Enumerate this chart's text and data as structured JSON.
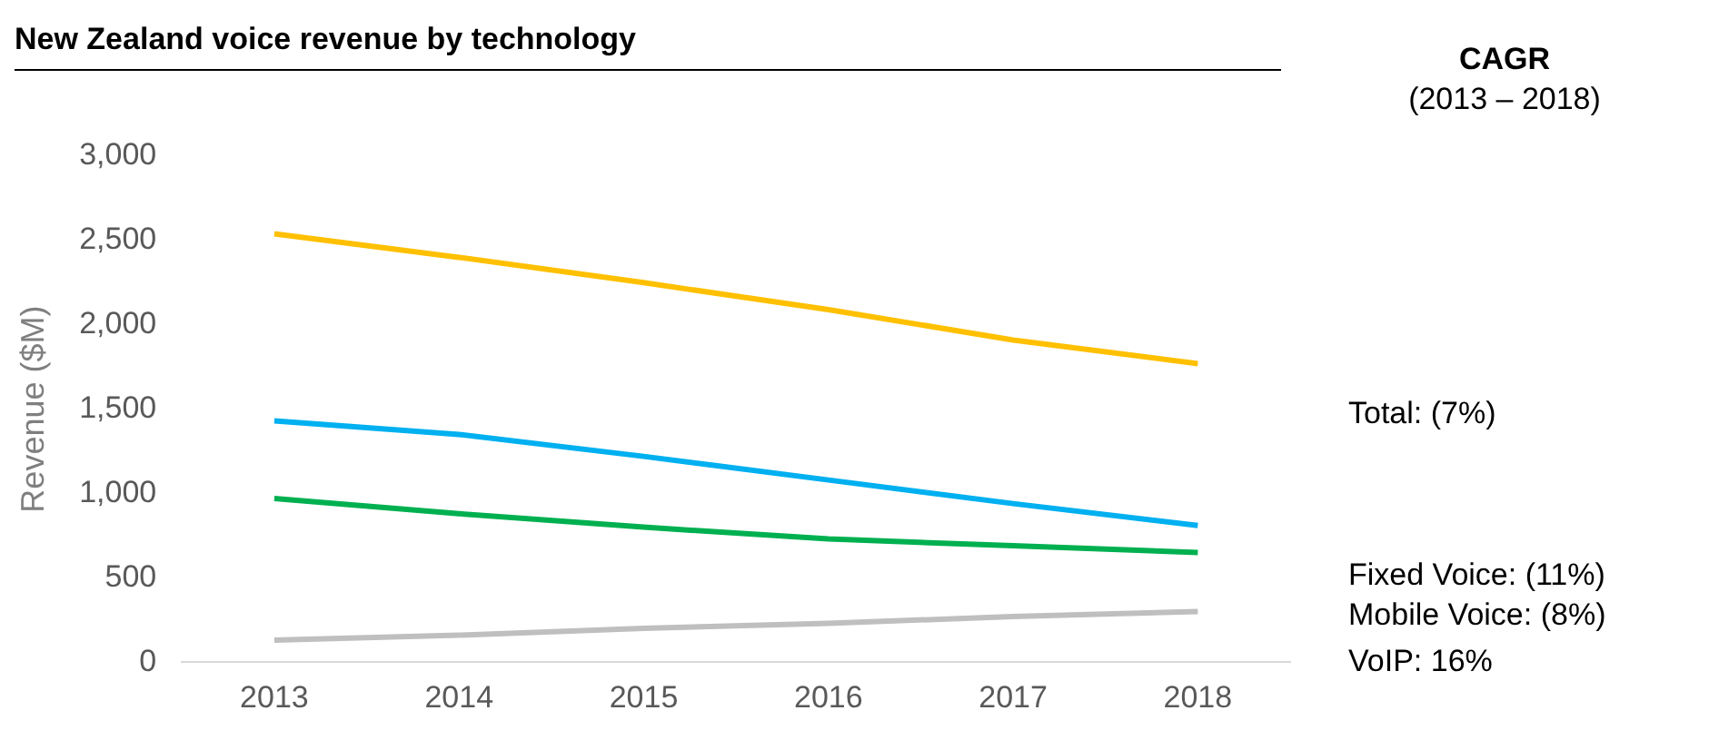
{
  "chart_data": {
    "type": "line",
    "title": "New Zealand voice revenue by technology",
    "legend_title": "CAGR",
    "annotations": [
      "(2013 – 2018)"
    ],
    "ylabel": "Revenue ($M)",
    "categories": [
      "2013",
      "2014",
      "2015",
      "2016",
      "2017",
      "2018"
    ],
    "series": [
      {
        "name": "Total: (7%)",
        "color": "#ffc000",
        "values": [
          2540,
          2400,
          2250,
          2090,
          1910,
          1770
        ]
      },
      {
        "name": "Fixed Voice: (11%)",
        "color": "#00b0f0",
        "values": [
          1430,
          1350,
          1220,
          1080,
          940,
          810
        ]
      },
      {
        "name": "Mobile Voice: (8%)",
        "color": "#00b050",
        "values": [
          970,
          880,
          800,
          730,
          690,
          650
        ]
      },
      {
        "name": "VoIP: 16%",
        "color": "#bfbfbf",
        "values": [
          130,
          160,
          200,
          230,
          270,
          300
        ]
      }
    ],
    "ylim": [
      0,
      3000
    ],
    "yticks": [
      0,
      500,
      {
        "value": 1000,
        "label": "1,000"
      },
      {
        "value": 1500,
        "label": "1,500"
      },
      {
        "value": 2000,
        "label": "2,000"
      },
      {
        "value": 2500,
        "label": "2,500"
      },
      {
        "value": 3000,
        "label": "3,000"
      }
    ],
    "grid": false,
    "legend": "right",
    "marker": "none",
    "line_style": "solid"
  }
}
